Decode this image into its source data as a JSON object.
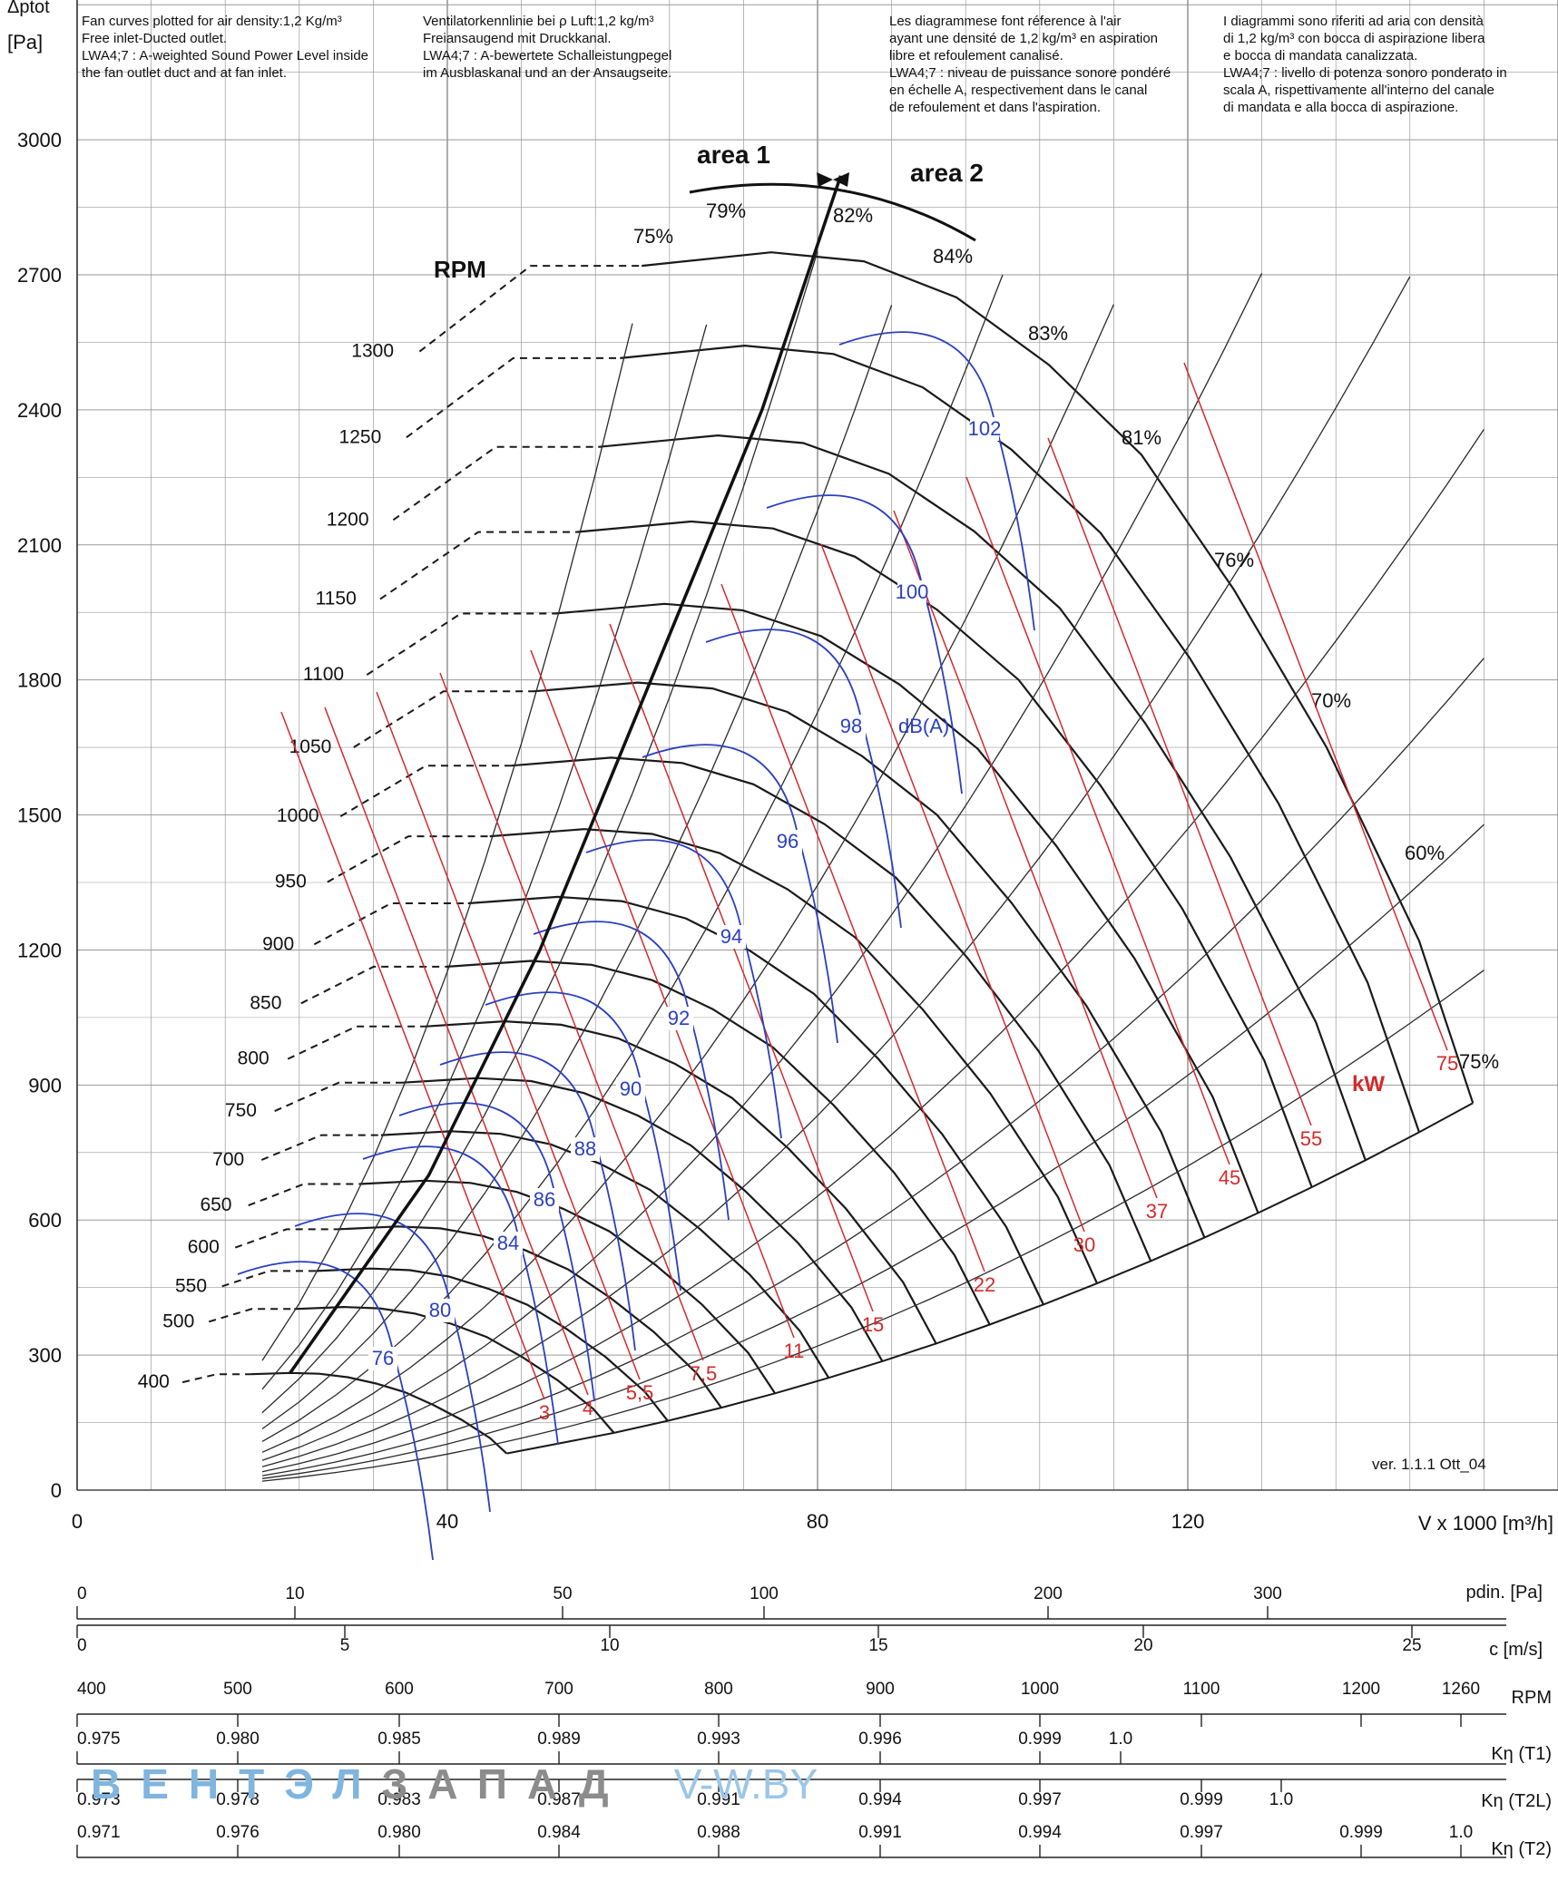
{
  "notes": {
    "en": "Fan curves plotted for air density:1,2 Kg/m³\nFree inlet-Ducted outlet.\nLWA4;7 : A-weighted Sound Power Level inside\nthe fan outlet duct and at fan inlet.",
    "de": "Ventilatorkennlinie bei ρ Luft:1,2 kg/m³\nFreiansaugend mit Druckkanal.\nLWA4;7 : A-bewertete Schalleistungpegel\nim Ausblaskanal und an der Ansaugseite.",
    "fr": "Les diagrammese font réference à l'air\nayant une densité de 1,2 kg/m³ en aspiration\nlibre et refoulement canalisé.\nLWA4;7 : niveau de puissance sonore pondéré\nen échelle A, respectivement dans le canal\nde refoulement et dans l'aspiration.",
    "it": "I diagrammi sono riferiti ad aria con densità\ndi 1,2 kg/m³ con bocca di aspirazione libera\ne bocca di mandata canalizzata.\nLWA4;7 : livello di potenza sonoro ponderato in\nscala A, rispettivamente all'interno del canale\ndi mandata e alla bocca di aspirazione."
  },
  "watermark": {
    "part1": "ВЕНТЭЛ",
    "part2": "ЗАПАД",
    "site": "V-W.BY"
  },
  "colors": {
    "rpm": "#1a1a1a",
    "power": "#d42a2a",
    "sound": "#2a3fc0",
    "grid": "#9a9a9a"
  },
  "chart_data": {
    "type": "line",
    "title": "",
    "ylabel_line1": "Δptot",
    "ylabel_line2": "[Pa]",
    "xlabel": "V x 1000 [m³/h]",
    "xlim": [
      0,
      160
    ],
    "ylim": [
      0,
      3200
    ],
    "x_ticks": [
      "0",
      "40",
      "80",
      "120"
    ],
    "y_ticks": [
      "0",
      "300",
      "600",
      "900",
      "1200",
      "1500",
      "1800",
      "2100",
      "2400",
      "2700",
      "3000"
    ],
    "grid": true,
    "annotations": {
      "rpm_title": "RPM",
      "area1": "area 1",
      "area2": "area 2",
      "kw_label": "kW",
      "db_unit": "dB(A)",
      "version": "ver. 1.1.1 Ott_04"
    },
    "rpm_curves": {
      "labels": [
        "400",
        "500",
        "550",
        "600",
        "650",
        "700",
        "750",
        "800",
        "850",
        "900",
        "950",
        "1000",
        "1050",
        "1100",
        "1150",
        "1200",
        "1250",
        "1300"
      ],
      "rpm": [
        400,
        500,
        550,
        600,
        650,
        700,
        750,
        800,
        850,
        900,
        950,
        1000,
        1050,
        1100,
        1150,
        1200,
        1250,
        1300
      ],
      "reference_1300": {
        "q": [
          61,
          75,
          85,
          95,
          105,
          115,
          125,
          135,
          145,
          150.8
        ],
        "p": [
          2720,
          2750,
          2730,
          2650,
          2500,
          2300,
          2000,
          1650,
          1220,
          860
        ]
      }
    },
    "efficiency_labels": [
      "75%",
      "79%",
      "82%",
      "84%",
      "83%",
      "81%",
      "76%",
      "70%",
      "60%",
      "75%"
    ],
    "power_kw": [
      "3",
      "4",
      "5,5",
      "7,5",
      "11",
      "15",
      "22",
      "30",
      "37",
      "45",
      "55",
      "75"
    ],
    "sound_dba": [
      "76",
      "80",
      "84",
      "86",
      "88",
      "90",
      "92",
      "94",
      "96",
      "98",
      "100",
      "102"
    ],
    "aux_scales": {
      "pdin": {
        "label": "pdin. [Pa]",
        "ticks": [
          "0",
          "10",
          "50",
          "100",
          "200",
          "300"
        ]
      },
      "c": {
        "label": "c [m/s]",
        "ticks": [
          "0",
          "5",
          "10",
          "15",
          "20",
          "25"
        ]
      },
      "rpm": {
        "label": "RPM",
        "ticks": [
          "400",
          "500",
          "600",
          "700",
          "800",
          "900",
          "1000",
          "1100",
          "1200",
          "1260"
        ]
      },
      "k_t1": {
        "label": "Kη (T1)",
        "ticks": [
          "0.975",
          "0.980",
          "0.985",
          "0.989",
          "0.993",
          "0.996",
          "0.999",
          "1.0"
        ]
      },
      "k_t2l": {
        "label": "Kη (T2L)",
        "ticks": [
          "0.973",
          "0.978",
          "0.983",
          "0.987",
          "0.991",
          "0.994",
          "0.997",
          "0.999",
          "1.0"
        ]
      },
      "k_t2": {
        "label": "Kη (T2)",
        "ticks": [
          "0.971",
          "0.976",
          "0.980",
          "0.984",
          "0.988",
          "0.991",
          "0.994",
          "0.997",
          "0.999",
          "1.0"
        ]
      }
    }
  }
}
